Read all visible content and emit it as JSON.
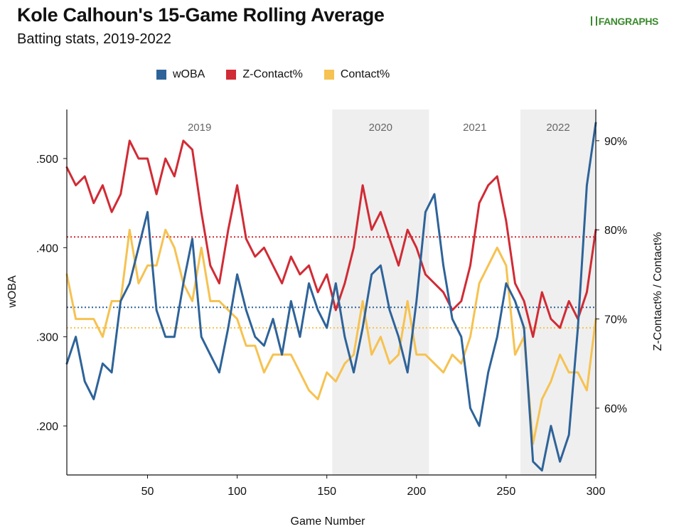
{
  "header": {
    "title": "Kole Calhoun's 15-Game Rolling Average",
    "subtitle": "Batting stats, 2019-2022",
    "logo_text": "FANGRAPHS"
  },
  "chart_data": {
    "type": "line",
    "xlabel": "Game Number",
    "ylabel_left": "wOBA",
    "ylabel_right": "Z-Contact% / Contact%",
    "xlim": [
      5,
      300
    ],
    "ylim_left": [
      0.145,
      0.555
    ],
    "ylim_right": [
      52.5,
      93.5
    ],
    "x_ticks": [
      50,
      100,
      150,
      200,
      250,
      300
    ],
    "y_ticks_left": [
      ".200",
      ".300",
      ".400",
      ".500"
    ],
    "y_ticks_left_values": [
      0.2,
      0.3,
      0.4,
      0.5
    ],
    "y_ticks_right": [
      "60%",
      "70%",
      "80%",
      "90%"
    ],
    "y_ticks_right_values": [
      60,
      70,
      80,
      90
    ],
    "grid": false,
    "legend_placement": "top",
    "seasons": [
      {
        "label": "2019",
        "start": 5,
        "end": 153,
        "shaded": false
      },
      {
        "label": "2020",
        "start": 153,
        "end": 207,
        "shaded": true
      },
      {
        "label": "2021",
        "start": 207,
        "end": 258,
        "shaded": false
      },
      {
        "label": "2022",
        "start": 258,
        "end": 300,
        "shaded": true
      }
    ],
    "reference_lines": [
      {
        "series": "wOBA",
        "value": 0.333
      },
      {
        "series": "Z-Contact%",
        "value": 79.2
      },
      {
        "series": "Contact%",
        "value": 69.0
      }
    ],
    "series": [
      {
        "name": "wOBA",
        "axis": "left",
        "color": "#2e6399",
        "x": [
          5,
          10,
          15,
          20,
          25,
          30,
          35,
          40,
          45,
          50,
          55,
          60,
          65,
          70,
          75,
          80,
          85,
          90,
          95,
          100,
          105,
          110,
          115,
          120,
          125,
          130,
          135,
          140,
          145,
          150,
          155,
          160,
          165,
          170,
          175,
          180,
          185,
          190,
          195,
          200,
          205,
          210,
          215,
          220,
          225,
          230,
          235,
          240,
          245,
          250,
          255,
          260,
          265,
          270,
          275,
          280,
          285,
          290,
          295,
          300
        ],
        "values": [
          0.27,
          0.3,
          0.25,
          0.23,
          0.27,
          0.26,
          0.34,
          0.36,
          0.4,
          0.44,
          0.33,
          0.3,
          0.3,
          0.36,
          0.41,
          0.3,
          0.28,
          0.26,
          0.31,
          0.37,
          0.33,
          0.3,
          0.29,
          0.32,
          0.28,
          0.34,
          0.3,
          0.36,
          0.33,
          0.31,
          0.36,
          0.3,
          0.26,
          0.31,
          0.37,
          0.38,
          0.33,
          0.3,
          0.26,
          0.34,
          0.44,
          0.46,
          0.38,
          0.32,
          0.3,
          0.22,
          0.2,
          0.26,
          0.3,
          0.36,
          0.34,
          0.31,
          0.16,
          0.15,
          0.2,
          0.16,
          0.19,
          0.31,
          0.47,
          0.54
        ]
      },
      {
        "name": "Z-Contact%",
        "axis": "right",
        "color": "#d12b35",
        "x": [
          5,
          10,
          15,
          20,
          25,
          30,
          35,
          40,
          45,
          50,
          55,
          60,
          65,
          70,
          75,
          80,
          85,
          90,
          95,
          100,
          105,
          110,
          115,
          120,
          125,
          130,
          135,
          140,
          145,
          150,
          155,
          160,
          165,
          170,
          175,
          180,
          185,
          190,
          195,
          200,
          205,
          210,
          215,
          220,
          225,
          230,
          235,
          240,
          245,
          250,
          255,
          260,
          265,
          270,
          275,
          280,
          285,
          290,
          295,
          300
        ],
        "values": [
          87,
          85,
          86,
          83,
          85,
          82,
          84,
          90,
          88,
          88,
          84,
          88,
          86,
          90,
          89,
          82,
          76,
          74,
          80,
          85,
          79,
          77,
          78,
          76,
          74,
          77,
          75,
          76,
          73,
          75,
          71,
          74,
          78,
          85,
          80,
          82,
          79,
          76,
          80,
          78,
          75,
          74,
          73,
          71,
          72,
          76,
          83,
          85,
          86,
          81,
          74,
          72,
          68,
          73,
          70,
          69,
          72,
          70,
          73,
          80
        ]
      },
      {
        "name": "Contact%",
        "axis": "right",
        "color": "#f6c251",
        "x": [
          5,
          10,
          15,
          20,
          25,
          30,
          35,
          40,
          45,
          50,
          55,
          60,
          65,
          70,
          75,
          80,
          85,
          90,
          95,
          100,
          105,
          110,
          115,
          120,
          125,
          130,
          135,
          140,
          145,
          150,
          155,
          160,
          165,
          170,
          175,
          180,
          185,
          190,
          195,
          200,
          205,
          210,
          215,
          220,
          225,
          230,
          235,
          240,
          245,
          250,
          255,
          260,
          265,
          270,
          275,
          280,
          285,
          290,
          295,
          300
        ],
        "values": [
          75,
          70,
          70,
          70,
          68,
          72,
          72,
          80,
          74,
          76,
          76,
          80,
          78,
          74,
          72,
          78,
          72,
          72,
          71,
          70,
          67,
          67,
          64,
          66,
          66,
          66,
          64,
          62,
          61,
          64,
          63,
          65,
          66,
          72,
          66,
          68,
          65,
          66,
          72,
          66,
          66,
          65,
          64,
          66,
          65,
          68,
          74,
          76,
          78,
          76,
          66,
          68,
          56,
          61,
          63,
          66,
          64,
          64,
          62,
          70
        ]
      }
    ]
  }
}
